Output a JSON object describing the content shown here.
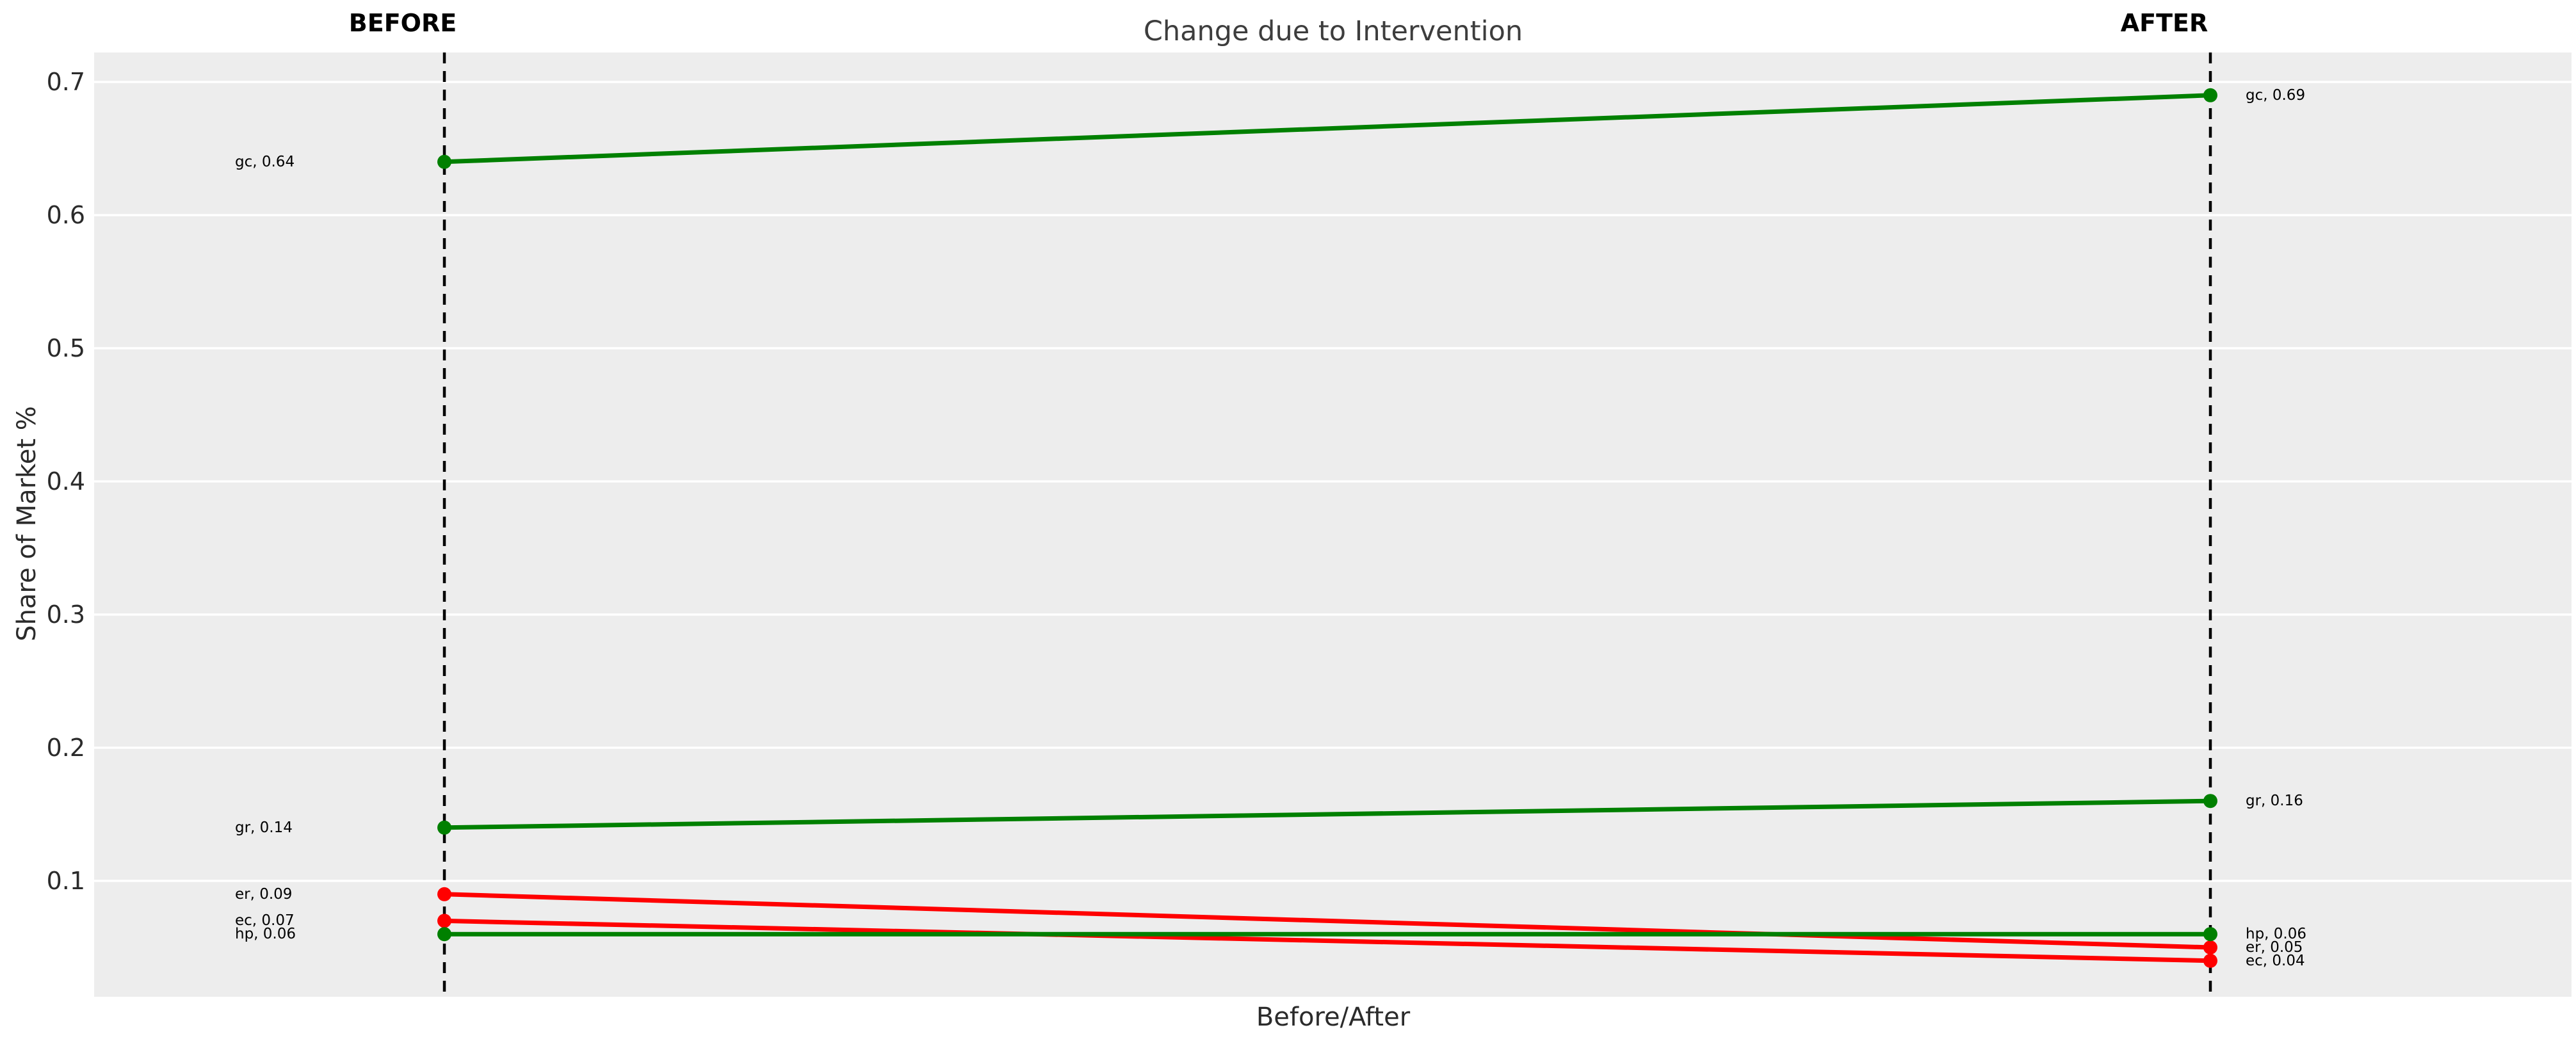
{
  "title": "Change due to Intervention",
  "x_axis_label": "Before/After",
  "y_axis_label": "Share of Market %",
  "column_headers": {
    "before": "BEFORE",
    "after": "AFTER"
  },
  "colors": {
    "plot_background": "#ededed",
    "gridline": "#ffffff",
    "dashed_guide": "#000000",
    "increase": "#008000",
    "decrease": "#ff0000"
  },
  "chart_data": {
    "type": "line",
    "subtype": "slope-chart",
    "title": "Change due to Intervention",
    "xlabel": "Before/After",
    "ylabel": "Share of Market %",
    "categories": [
      "BEFORE",
      "AFTER"
    ],
    "grid": true,
    "legend": false,
    "ylim": [
      0.01,
      0.72
    ],
    "yticks": [
      {
        "value": 0.7,
        "label": "0.7"
      },
      {
        "value": 0.6,
        "label": "0.6"
      },
      {
        "value": 0.5,
        "label": "0.5"
      },
      {
        "value": 0.4,
        "label": "0.4"
      },
      {
        "value": 0.3,
        "label": "0.3"
      },
      {
        "value": 0.2,
        "label": "0.2"
      },
      {
        "value": 0.1,
        "label": "0.1"
      }
    ],
    "series": [
      {
        "name": "gc",
        "color": "#008000",
        "before": 0.64,
        "after": 0.69,
        "label_before": "gc, 0.64",
        "label_after": "gc, 0.69"
      },
      {
        "name": "gr",
        "color": "#008000",
        "before": 0.14,
        "after": 0.16,
        "label_before": "gr, 0.14",
        "label_after": "gr, 0.16"
      },
      {
        "name": "er",
        "color": "#ff0000",
        "before": 0.09,
        "after": 0.05,
        "label_before": "er, 0.09",
        "label_after": "er, 0.05"
      },
      {
        "name": "ec",
        "color": "#ff0000",
        "before": 0.07,
        "after": 0.04,
        "label_before": "ec, 0.07",
        "label_after": "ec, 0.04"
      },
      {
        "name": "hp",
        "color": "#008000",
        "before": 0.06,
        "after": 0.06,
        "label_before": "hp, 0.06",
        "label_after": "hp, 0.06"
      }
    ]
  }
}
